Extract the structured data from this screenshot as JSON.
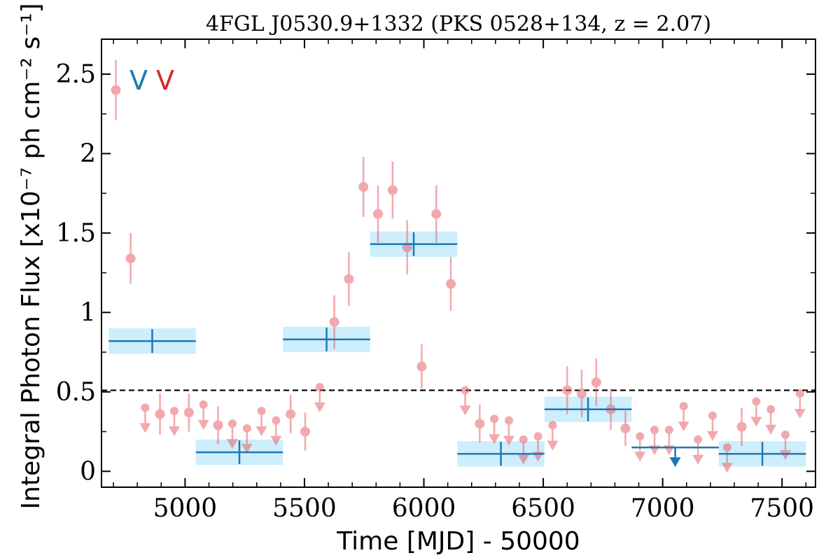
{
  "chart_data": {
    "type": "scatter",
    "title": "4FGL J0530.9+1332 (PKS 0528+134, z = 2.07)",
    "xlabel": "Time [MJD] - 50000",
    "ylabel": "Integral Photon Flux [x10⁻⁷ ph cm⁻² s⁻¹]",
    "xlim": [
      4650,
      7640
    ],
    "ylim": [
      -0.1,
      2.72
    ],
    "x_ticks": [
      5000,
      5500,
      6000,
      6500,
      7000,
      7500
    ],
    "x_tick_labels": [
      "5000",
      "5500",
      "6000",
      "6500",
      "7000",
      "7500"
    ],
    "y_ticks": [
      0,
      0.5,
      1,
      1.5,
      2,
      2.5
    ],
    "y_tick_labels": [
      "0",
      "0.5",
      "1",
      "1.5",
      "2",
      "2.5"
    ],
    "threshold": 0.51,
    "colors": {
      "short_bin": "#e8646a",
      "long_bin": "#1f77b4",
      "band": "#cdeefc",
      "legend_short": "#d62728",
      "legend_long": "#1f77b4"
    },
    "legend": {
      "placement": "top-left",
      "entries": [
        {
          "label": "V",
          "series": "long_bin"
        },
        {
          "label": "V",
          "series": "short_bin"
        }
      ]
    },
    "series": [
      {
        "key": "short_bin",
        "points": [
          {
            "x": 4710,
            "y": 2.4,
            "err": 0.19
          },
          {
            "x": 4772,
            "y": 1.34,
            "err": 0.16
          },
          {
            "x": 4833,
            "y": 0.4,
            "ul": true
          },
          {
            "x": 4895,
            "y": 0.36,
            "err": 0.13
          },
          {
            "x": 4955,
            "y": 0.38,
            "ul": true
          },
          {
            "x": 5016,
            "y": 0.37,
            "err": 0.12
          },
          {
            "x": 5077,
            "y": 0.42,
            "ul": true
          },
          {
            "x": 5138,
            "y": 0.29,
            "err": 0.12
          },
          {
            "x": 5198,
            "y": 0.3,
            "ul": true
          },
          {
            "x": 5259,
            "y": 0.27,
            "ul": true
          },
          {
            "x": 5320,
            "y": 0.38,
            "ul": true
          },
          {
            "x": 5381,
            "y": 0.32,
            "ul": true
          },
          {
            "x": 5442,
            "y": 0.36,
            "err": 0.12
          },
          {
            "x": 5503,
            "y": 0.25,
            "err": 0.12
          },
          {
            "x": 5564,
            "y": 0.53,
            "ul": true
          },
          {
            "x": 5625,
            "y": 0.94,
            "err": 0.17
          },
          {
            "x": 5686,
            "y": 1.21,
            "err": 0.17
          },
          {
            "x": 5747,
            "y": 1.79,
            "err": 0.19
          },
          {
            "x": 5808,
            "y": 1.62,
            "err": 0.18
          },
          {
            "x": 5869,
            "y": 1.77,
            "err": 0.18
          },
          {
            "x": 5930,
            "y": 1.41,
            "err": 0.17
          },
          {
            "x": 5991,
            "y": 0.66,
            "err": 0.14
          },
          {
            "x": 6052,
            "y": 1.62,
            "err": 0.18
          },
          {
            "x": 6113,
            "y": 1.18,
            "err": 0.17
          },
          {
            "x": 6173,
            "y": 0.51,
            "ul": true
          },
          {
            "x": 6234,
            "y": 0.3,
            "err": 0.12
          },
          {
            "x": 6295,
            "y": 0.33,
            "ul": true
          },
          {
            "x": 6356,
            "y": 0.32,
            "ul": true
          },
          {
            "x": 6417,
            "y": 0.2,
            "ul": true
          },
          {
            "x": 6478,
            "y": 0.22,
            "ul": true
          },
          {
            "x": 6539,
            "y": 0.29,
            "ul": true
          },
          {
            "x": 6600,
            "y": 0.51,
            "err": 0.15
          },
          {
            "x": 6661,
            "y": 0.49,
            "err": 0.15
          },
          {
            "x": 6722,
            "y": 0.56,
            "err": 0.15
          },
          {
            "x": 6783,
            "y": 0.39,
            "err": 0.13
          },
          {
            "x": 6844,
            "y": 0.27,
            "err": 0.11
          },
          {
            "x": 6905,
            "y": 0.22,
            "ul": true
          },
          {
            "x": 6966,
            "y": 0.26,
            "ul": true
          },
          {
            "x": 7027,
            "y": 0.26,
            "ul": true
          },
          {
            "x": 7088,
            "y": 0.41,
            "ul": true
          },
          {
            "x": 7148,
            "y": 0.2,
            "ul": true
          },
          {
            "x": 7209,
            "y": 0.35,
            "ul": true
          },
          {
            "x": 7270,
            "y": 0.15,
            "ul": true
          },
          {
            "x": 7331,
            "y": 0.28,
            "err": 0.12
          },
          {
            "x": 7392,
            "y": 0.44,
            "ul": true
          },
          {
            "x": 7453,
            "y": 0.39,
            "ul": true
          },
          {
            "x": 7514,
            "y": 0.23,
            "ul": true
          },
          {
            "x": 7575,
            "y": 0.49,
            "ul": true
          }
        ]
      },
      {
        "key": "long_bin",
        "bins": [
          {
            "x0": 4680,
            "x1": 5045,
            "y": 0.82,
            "err": 0.03
          },
          {
            "x0": 5045,
            "x1": 5410,
            "y": 0.12,
            "err": 0.03
          },
          {
            "x0": 5410,
            "x1": 5775,
            "y": 0.83,
            "err": 0.03
          },
          {
            "x0": 5775,
            "x1": 6140,
            "y": 1.43,
            "err": 0.04
          },
          {
            "x0": 6140,
            "x1": 6505,
            "y": 0.11,
            "err": 0.03
          },
          {
            "x0": 6505,
            "x1": 6870,
            "y": 0.39,
            "err": 0.03
          },
          {
            "x0": 6870,
            "x1": 7235,
            "y": 0.15,
            "ul": true
          },
          {
            "x0": 7235,
            "x1": 7600,
            "y": 0.11,
            "err": 0.03
          }
        ]
      }
    ]
  }
}
